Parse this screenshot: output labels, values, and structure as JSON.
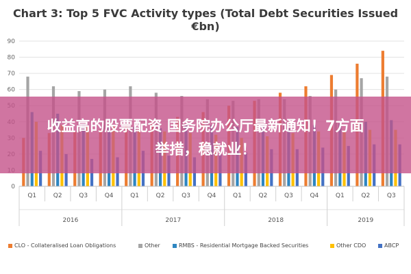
{
  "chart_data": {
    "type": "bar",
    "title": "Chart 3: Top 5 FVC Activity types (Total Debt Securities Issued €bn)",
    "categories": [
      "Q1",
      "Q2",
      "Q3",
      "Q4",
      "Q1",
      "Q2",
      "Q3",
      "Q4",
      "Q1",
      "Q2",
      "Q3",
      "Q4",
      "Q1",
      "Q2",
      "Q3"
    ],
    "years": [
      {
        "label": "2016",
        "span": 4
      },
      {
        "label": "2017",
        "span": 4
      },
      {
        "label": "2018",
        "span": 4
      },
      {
        "label": "2019",
        "span": 3
      }
    ],
    "series": [
      {
        "name": "CLO - Collateralised Loan Obligations",
        "color": "#ed7d31",
        "values": [
          30,
          33,
          34,
          35,
          38,
          40,
          43,
          46,
          50,
          53,
          58,
          62,
          69,
          76,
          84
        ]
      },
      {
        "name": "Other",
        "color": "#a5a5a5",
        "values": [
          68,
          62,
          59,
          60,
          62,
          58,
          56,
          54,
          53,
          54,
          54,
          56,
          60,
          67,
          68
        ]
      },
      {
        "name": "RMBS - Residential Mortgage Backed Securities",
        "color": "#2e86c1",
        "values": [
          46,
          45,
          38,
          37,
          37,
          36,
          38,
          38,
          37,
          38,
          36,
          38,
          39,
          40,
          41
        ]
      },
      {
        "name": "Other CDO",
        "color": "#ffc000",
        "values": [
          40,
          38,
          37,
          37,
          35,
          34,
          33,
          32,
          30,
          31,
          33,
          34,
          34,
          35,
          35
        ]
      },
      {
        "name": "ABCP",
        "color": "#4472c4",
        "values": [
          22,
          20,
          17,
          18,
          22,
          19,
          18,
          20,
          21,
          23,
          23,
          24,
          25,
          26,
          26
        ]
      }
    ],
    "ylim": [
      0,
      90
    ],
    "yticks": [
      0,
      10,
      20,
      30,
      40,
      50,
      60,
      70,
      80,
      90
    ],
    "grid": true,
    "legend_position": "bottom"
  },
  "overlay": {
    "line1": "收益高的股票配资 国务院办公厅最新通知！7方面",
    "line2": "举措，稳就业！"
  }
}
